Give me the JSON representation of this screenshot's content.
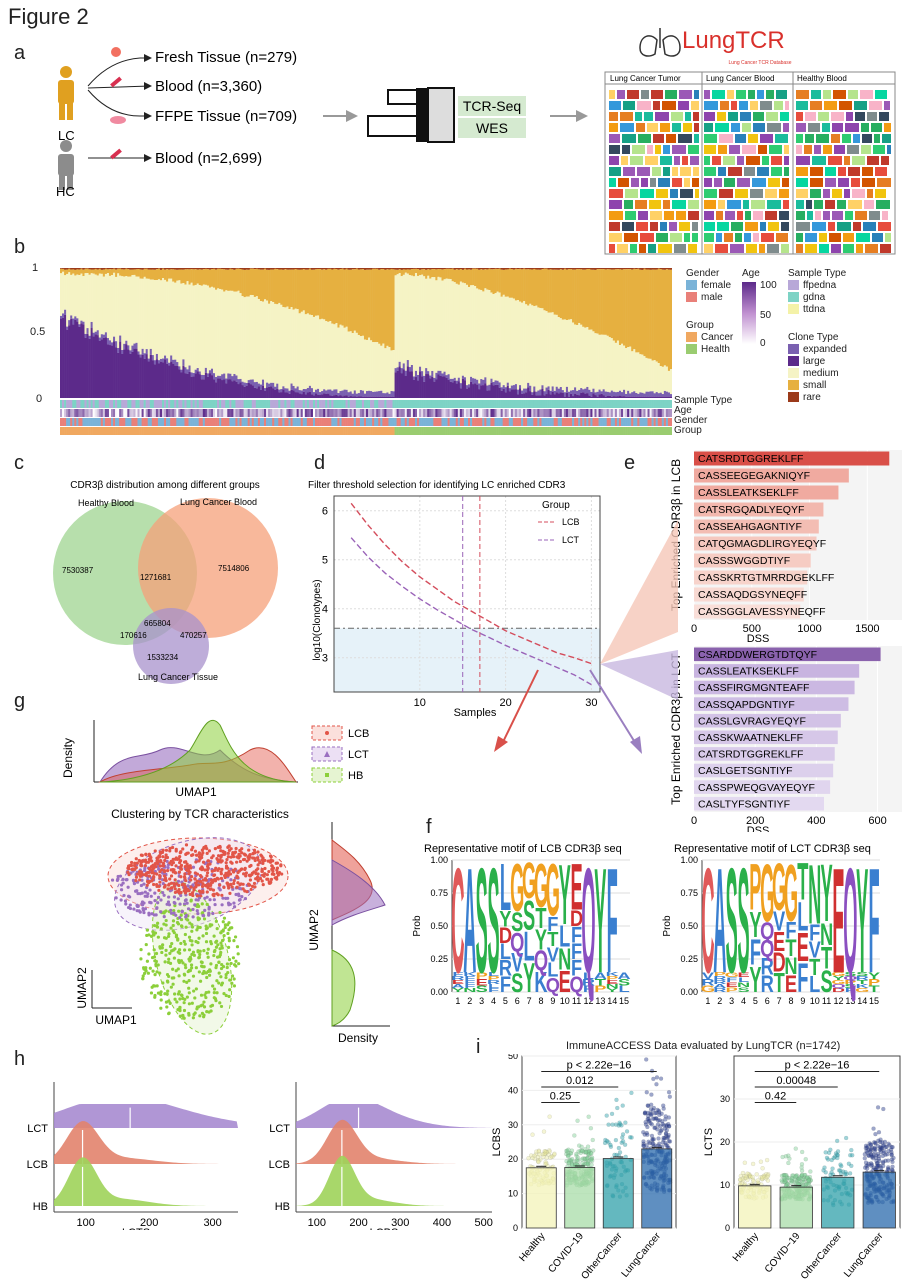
{
  "figure_title": "Figure 2",
  "panels": {
    "a": "a",
    "b": "b",
    "c": "c",
    "d": "d",
    "e": "e",
    "f": "f",
    "g": "g",
    "h": "h",
    "i": "i"
  },
  "panel_a": {
    "lc_label": "LC",
    "hc_label": "HC",
    "sources": [
      "Fresh Tissue (n=279)",
      "Blood (n=3,360)",
      "FFPE Tissue (n=709)",
      "Blood (n=2,699)"
    ],
    "assays": [
      "TCR-Seq",
      "WES"
    ],
    "logo_text": "LungTCR",
    "logo_subtitle": "Lung Cancer TCR Database",
    "db_columns": [
      "Lung Cancer Tumor",
      "Lung Cancer Blood",
      "Healthy Blood"
    ],
    "colors": {
      "person_lc": "#e0a020",
      "person_hc": "#8c8c8c",
      "logo_red": "#d9302b",
      "assay_bg": "#d5ead0"
    }
  },
  "panel_b": {
    "yticks": [
      "1",
      "0.5",
      "0"
    ],
    "row_labels": [
      "Sample Type",
      "Age",
      "Gender",
      "Group"
    ],
    "legend": {
      "gender_title": "Gender",
      "gender_items": [
        "female",
        "male"
      ],
      "age_title": "Age",
      "age_ticks": [
        "100",
        "50",
        "0"
      ],
      "group_title": "Group",
      "group_items": [
        "Cancer",
        "Health"
      ],
      "sample_title": "Sample Type",
      "sample_items": [
        "ffpedna",
        "gdna",
        "ttdna"
      ],
      "clone_title": "Clone Type",
      "clone_items": [
        "expanded",
        "large",
        "medium",
        "small",
        "rare"
      ]
    },
    "colors": {
      "female": "#7ab3d8",
      "male": "#e98079",
      "cancer": "#f0a860",
      "health": "#9acc70",
      "ffpedna": "#b8a8d8",
      "gdna": "#7dd3c5",
      "ttdna": "#f4f2a8",
      "expanded": "#7a60b0",
      "large": "#5c2a8a",
      "medium": "#f5f3c5",
      "small": "#e6b040",
      "rare": "#9b3a1a"
    }
  },
  "panel_c": {
    "title": "CDR3β distribution among different groups",
    "sets": [
      "Healthy Blood",
      "Lung Cancer Blood",
      "Lung Cancer Tissue"
    ],
    "counts": {
      "hb_only": "7530387",
      "lcb_only": "7514806",
      "lct_only": "1533234",
      "hb_lcb": "1271681",
      "all": "665804",
      "hb_lct": "170616",
      "lcb_lct": "470257"
    },
    "colors": {
      "hb": "#9fd490",
      "lcb": "#f5a07a",
      "lct": "#a892cc"
    }
  },
  "panel_d": {
    "chart_data": {
      "type": "line",
      "title": "Filter threshold selection for identifying LC enriched CDR3",
      "xlabel": "Samples",
      "ylabel": "log10(Clonotypes)",
      "xlim": [
        0,
        31
      ],
      "ylim": [
        2.3,
        6.3
      ],
      "xticks": [
        "10",
        "20",
        "30"
      ],
      "yticks": [
        "3",
        "4",
        "5",
        "6"
      ],
      "legend_title": "Group",
      "series": [
        {
          "name": "LCB",
          "color": "#d44d5c",
          "x": [
            2,
            4,
            6,
            8,
            10,
            12,
            14,
            16,
            18,
            20,
            22,
            24,
            26,
            28,
            30
          ],
          "y": [
            6.15,
            5.7,
            5.3,
            4.95,
            4.65,
            4.4,
            4.15,
            3.95,
            3.75,
            3.55,
            3.4,
            3.25,
            3.1,
            3.0,
            2.88
          ]
        },
        {
          "name": "LCT",
          "color": "#9a63b8",
          "x": [
            2,
            4,
            6,
            8,
            10,
            12,
            14,
            16,
            18,
            20,
            22,
            24,
            26,
            28,
            30
          ],
          "y": [
            5.45,
            5.05,
            4.72,
            4.45,
            4.2,
            3.98,
            3.78,
            3.58,
            3.42,
            3.25,
            3.1,
            2.95,
            2.8,
            2.65,
            2.45
          ]
        }
      ],
      "threshold_y": 3.6,
      "vlines": [
        {
          "x": 15,
          "color": "#9a63b8"
        },
        {
          "x": 17,
          "color": "#d44d5c"
        }
      ]
    }
  },
  "panel_e": {
    "chart_data": [
      {
        "type": "bar",
        "ylabel": "Top Enriched CDR3β in LCB",
        "xlabel": "DSS",
        "xticks": [
          "0",
          "500",
          "1000",
          "1500"
        ],
        "xlim": [
          0,
          1800
        ],
        "categories": [
          "CATSRDTGGREKLFF",
          "CASSEEGEGAKNIQYF",
          "CASSLEATKSEKLFF",
          "CATSRGQADLYEQYF",
          "CASSEAHGAGNTIYF",
          "CATQGMAGDLIRGYEQYF",
          "CASSSWGGDTIYF",
          "CASSKRTGTMRRDGEKLFF",
          "CASSAQDGSYNEQFF",
          "CASSGGLAVESSYNEQFF"
        ],
        "values": [
          1690,
          1340,
          1250,
          1120,
          1080,
          1060,
          1010,
          980,
          950,
          920
        ],
        "colors": [
          "#d94f48",
          "#f0aaa0",
          "#f0aaa0",
          "#f2b8ae",
          "#f3bdb3",
          "#f5c8bf",
          "#f6ccc3",
          "#f7d3cb",
          "#f8d9d2",
          "#f9ded8"
        ]
      },
      {
        "type": "bar",
        "ylabel": "Top Enriched CDR3β in LCT",
        "xlabel": "DSS",
        "xticks": [
          "0",
          "200",
          "400",
          "600"
        ],
        "xlim": [
          0,
          680
        ],
        "categories": [
          "CSARDDWERGTDTQYF",
          "CASSLEATKSEKLFF",
          "CASSFIRGMGNTEAFF",
          "CASSQAPDGNTIYF",
          "CASSLGVRAGYEQYF",
          "CASSKWAATNEKLFF",
          "CATSRDTGGREKLFF",
          "CASLGETSGNTIYF",
          "CASSPWEQGVAYEQYF",
          "CASLTYFSGNTIYF"
        ],
        "values": [
          610,
          540,
          525,
          505,
          480,
          470,
          460,
          455,
          445,
          425
        ],
        "colors": [
          "#8a62ad",
          "#c8b4e0",
          "#cbb8e2",
          "#cebde4",
          "#d2c2e6",
          "#d6c7e8",
          "#d9cbea",
          "#dcd0ec",
          "#e0d5ee",
          "#e3d9f0"
        ]
      }
    ]
  },
  "panel_f": {
    "titles": [
      "Representative motif of LCB CDR3β seq",
      "Representative motif of LCT CDR3β seq"
    ],
    "ylabel": "Prob",
    "yticks": [
      "1.00",
      "0.75",
      "0.50",
      "0.25",
      "0.00"
    ],
    "positions": [
      "1",
      "2",
      "3",
      "4",
      "5",
      "6",
      "7",
      "8",
      "9",
      "10",
      "11",
      "12",
      "13",
      "14",
      "15"
    ],
    "lcb_top": [
      "C",
      "A",
      "S",
      "S",
      "L",
      "G",
      "G",
      "G",
      "G",
      "Y",
      "E",
      "Q",
      "Y",
      "F"
    ],
    "lct_top": [
      "C",
      "A",
      "S",
      "S",
      "P",
      "G",
      "G",
      "G",
      "T",
      "N",
      "Y",
      "E",
      "Q",
      "Y",
      "F"
    ],
    "colors": {
      "C": "#e05a5a",
      "A": "#3a7fd0",
      "S": "#2ab04a",
      "L": "#3a7fd0",
      "G": "#f0a020",
      "Y": "#2ab04a",
      "E": "#d03030",
      "Q": "#8a4fc0",
      "F": "#3a7fd0",
      "N": "#2ab04a",
      "T": "#2ab04a",
      "P": "#f0a020"
    }
  },
  "panel_g": {
    "density_xlabel": "UMAP1",
    "density_ylabel": "Density",
    "legend": [
      "LCB",
      "LCT",
      "HB"
    ],
    "scatter_title": "Clustering by TCR characteristics",
    "scatter_xlabel": "UMAP1",
    "scatter_ylabel": "UMAP2",
    "side_ylabel": "UMAP2",
    "side_xlabel": "Density",
    "colors": {
      "lcb": "#e25548",
      "lct": "#9a6fc0",
      "hb": "#8ccf3a"
    }
  },
  "panel_h": {
    "chart_data": [
      {
        "type": "area",
        "xlabel": "LCTS",
        "xticks": [
          "100",
          "200",
          "300"
        ],
        "categories": [
          "LCT",
          "LCB",
          "HB"
        ]
      },
      {
        "type": "area",
        "xlabel": "LCBS",
        "xticks": [
          "100",
          "200",
          "300",
          "400",
          "500"
        ],
        "categories": [
          "LCT",
          "LCB",
          "HB"
        ]
      }
    ]
  },
  "panel_i": {
    "title": "ImmuneACCESS Data evaluated by LungTCR (n=1742)",
    "chart_data": [
      {
        "type": "bar",
        "ylabel": "LCBS",
        "categories": [
          "Healthy",
          "COVID−19",
          "OtherCancer",
          "LungCancer"
        ],
        "values": [
          17.5,
          17.6,
          20.2,
          23.0
        ],
        "ylim": [
          0,
          50
        ],
        "yticks": [
          "0",
          "10",
          "20",
          "30",
          "40",
          "50"
        ],
        "comparisons": [
          "0.25",
          "0.012",
          "p < 2.22e−16"
        ],
        "colors": [
          "#f3f3b8",
          "#a8dca8",
          "#30a0aa",
          "#2a6aac"
        ]
      },
      {
        "type": "bar",
        "ylabel": "LCTS",
        "categories": [
          "Healthy",
          "COVID−19",
          "OtherCancer",
          "LungCancer"
        ],
        "values": [
          9.8,
          9.5,
          11.8,
          13.0
        ],
        "ylim": [
          0,
          40
        ],
        "yticks": [
          "0",
          "10",
          "20",
          "30"
        ],
        "comparisons": [
          "0.42",
          "0.00048",
          "p < 2.22e−16"
        ],
        "colors": [
          "#f3f3b8",
          "#a8dca8",
          "#30a0aa",
          "#2a6aac"
        ]
      }
    ]
  }
}
